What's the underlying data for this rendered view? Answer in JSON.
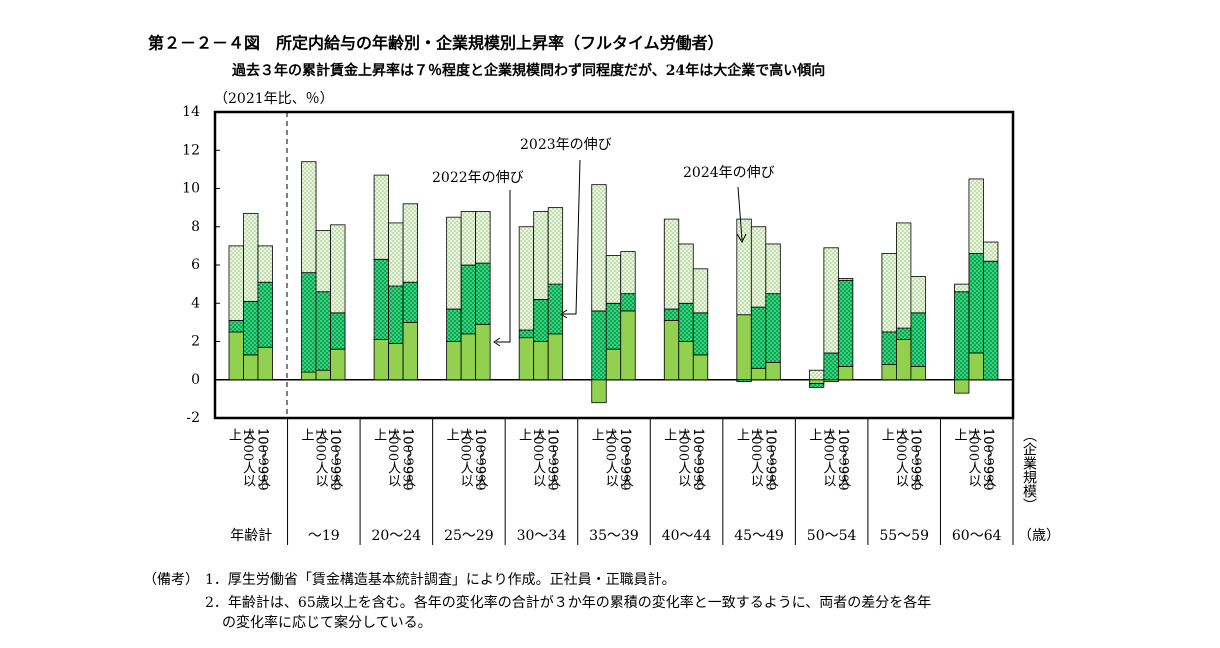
{
  "chart_data": {
    "type": "stacked-bar",
    "title": "第２－２－４図　所定内給与の年齢別・企業規模別上昇率（フルタイム労働者）",
    "subtitle": "過去３年の累計賃金上昇率は７％程度と企業規模問わず同程度だが、24年は大企業で高い傾向",
    "y_label": "（2021年比、％）",
    "x_label_size": "（企業規模）",
    "x_label_age": "（歳）",
    "groups": [
      "年齢計",
      "～19",
      "20～24",
      "25～29",
      "30～34",
      "35～39",
      "40～44",
      "45～49",
      "50～54",
      "55～59",
      "60～64"
    ],
    "sizes": [
      "1000人以上",
      "100～999人",
      "10～99人"
    ],
    "series": [
      {
        "name": "2022年の伸び",
        "color": "#92d050",
        "pattern": "solid",
        "values": [
          2.5,
          1.3,
          1.7,
          0.4,
          0.5,
          1.6,
          2.1,
          1.9,
          3.0,
          2.0,
          2.4,
          2.9,
          2.2,
          2.0,
          2.4,
          -1.2,
          1.6,
          3.6,
          3.1,
          2.0,
          1.3,
          3.4,
          0.6,
          0.9,
          -0.2,
          -0.1,
          0.7,
          0.8,
          2.1,
          0.7,
          -0.7,
          1.4,
          0.0
        ]
      },
      {
        "name": "2023年の伸び",
        "color": "#00b050",
        "pattern": "dots",
        "values": [
          0.6,
          2.8,
          3.4,
          5.2,
          4.1,
          1.9,
          4.2,
          3.0,
          2.1,
          1.7,
          3.6,
          3.2,
          0.4,
          2.2,
          2.6,
          3.6,
          2.4,
          0.9,
          0.6,
          2.0,
          2.2,
          -0.1,
          3.2,
          3.6,
          -0.2,
          1.4,
          4.5,
          1.7,
          0.6,
          2.8,
          4.6,
          5.2,
          6.2
        ]
      },
      {
        "name": "2024年の伸び",
        "color": "#e8f5dc",
        "pattern": "dots",
        "values": [
          3.9,
          4.6,
          1.9,
          5.8,
          3.2,
          4.6,
          4.4,
          3.3,
          4.1,
          4.8,
          2.8,
          2.7,
          5.4,
          4.6,
          4.0,
          6.6,
          2.5,
          2.2,
          4.7,
          3.1,
          2.3,
          5.0,
          4.2,
          2.6,
          0.5,
          5.5,
          0.1,
          4.1,
          5.5,
          1.9,
          0.4,
          3.9,
          1.0
        ]
      }
    ],
    "ylim": [
      -2,
      14
    ],
    "yticks": [
      -2,
      0,
      2,
      4,
      6,
      8,
      10,
      12,
      14
    ]
  },
  "notes": {
    "label": "（備考）",
    "items": [
      "1．厚生労働省「賃金構造基本統計調査」により作成。正社員・正職員計。",
      "2．年齢計は、65歳以上を含む。各年の変化率の合計が３か年の累積の変化率と一致するように、両者の差分を各年",
      "の変化率に応じて案分している。"
    ]
  }
}
